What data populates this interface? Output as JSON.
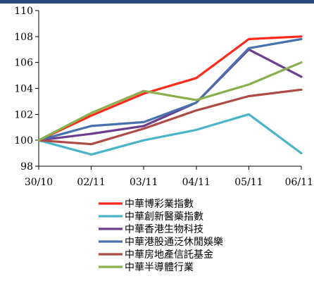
{
  "header": {
    "bar_color": "#2a4b80"
  },
  "chart_data": {
    "type": "line",
    "title": "",
    "xlabel": "",
    "ylabel": "",
    "categories": [
      "30/10",
      "02/11",
      "03/11",
      "04/11",
      "05/11",
      "06/11"
    ],
    "ylim": [
      98,
      110
    ],
    "yticks": [
      98,
      100,
      102,
      104,
      106,
      108,
      110
    ],
    "grid": false,
    "legend_position": "bottom",
    "series": [
      {
        "name": "中華博彩業指數",
        "color": "#ff2a1a",
        "values": [
          100,
          101.9,
          103.6,
          104.8,
          107.8,
          108.0
        ]
      },
      {
        "name": "中華創新醫藥指數",
        "color": "#4ab4c8",
        "values": [
          100,
          98.9,
          100.0,
          100.8,
          102.0,
          99.0
        ]
      },
      {
        "name": "中華香港生物科技",
        "color": "#6a3f8e",
        "values": [
          100,
          100.5,
          101.1,
          102.9,
          107.0,
          104.9
        ]
      },
      {
        "name": "中華港股通泛休閒娛樂",
        "color": "#4a70ad",
        "values": [
          100,
          101.1,
          101.4,
          102.9,
          107.1,
          107.8
        ]
      },
      {
        "name": "中華房地產信託基金",
        "color": "#b04a48",
        "values": [
          100,
          99.7,
          100.9,
          102.3,
          103.4,
          103.9
        ]
      },
      {
        "name": "中華半導體行業",
        "color": "#8cae4c",
        "values": [
          100,
          102.1,
          103.8,
          103.1,
          104.3,
          106.0
        ]
      }
    ]
  }
}
